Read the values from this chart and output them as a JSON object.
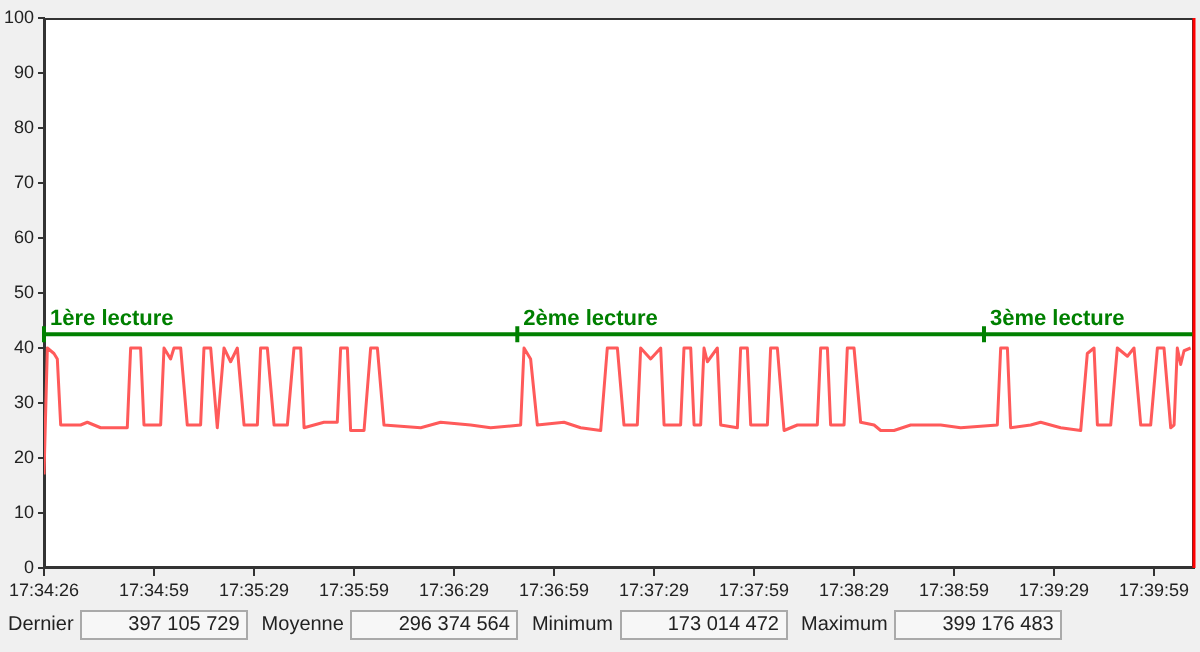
{
  "chart_data": {
    "type": "line",
    "xlim": [
      17.57389,
      17.66972
    ],
    "ylim": [
      0,
      100
    ],
    "yticks": [
      0,
      10,
      20,
      30,
      40,
      50,
      60,
      70,
      80,
      90,
      100
    ],
    "xticks": [
      {
        "value": 17.57389,
        "label": "17:34:26"
      },
      {
        "value": 17.58306,
        "label": "17:34:59"
      },
      {
        "value": 17.59139,
        "label": "17:35:29"
      },
      {
        "value": 17.59972,
        "label": "17:35:59"
      },
      {
        "value": 17.60806,
        "label": "17:36:29"
      },
      {
        "value": 17.61639,
        "label": "17:36:59"
      },
      {
        "value": 17.62472,
        "label": "17:37:29"
      },
      {
        "value": 17.63306,
        "label": "17:37:59"
      },
      {
        "value": 17.64139,
        "label": "17:38:29"
      },
      {
        "value": 17.64972,
        "label": "17:38:59"
      },
      {
        "value": 17.65806,
        "label": "17:39:29"
      },
      {
        "value": 17.66639,
        "label": "17:39:59"
      }
    ],
    "grid": false,
    "legend": false,
    "marker": "none",
    "line_style": "solid",
    "x": [
      17.57389,
      17.57417,
      17.57472,
      17.575,
      17.57528,
      17.57694,
      17.5775,
      17.57861,
      17.58083,
      17.58111,
      17.58194,
      17.58222,
      17.58361,
      17.58389,
      17.58444,
      17.58472,
      17.58528,
      17.58583,
      17.58694,
      17.58722,
      17.58778,
      17.58833,
      17.58889,
      17.58944,
      17.59,
      17.59056,
      17.59167,
      17.59194,
      17.5925,
      17.59306,
      17.59417,
      17.59472,
      17.59528,
      17.59556,
      17.59722,
      17.59833,
      17.59861,
      17.59917,
      17.59944,
      17.60056,
      17.60111,
      17.60167,
      17.60222,
      17.60528,
      17.60694,
      17.60944,
      17.61111,
      17.61361,
      17.61389,
      17.61444,
      17.615,
      17.61722,
      17.61861,
      17.62028,
      17.62083,
      17.62167,
      17.62222,
      17.62333,
      17.62361,
      17.62444,
      17.62528,
      17.62556,
      17.62694,
      17.62722,
      17.62778,
      17.62806,
      17.62861,
      17.62889,
      17.62917,
      17.63,
      17.63028,
      17.63167,
      17.63194,
      17.6325,
      17.63278,
      17.63417,
      17.63444,
      17.635,
      17.63556,
      17.63667,
      17.63833,
      17.63861,
      17.63917,
      17.63944,
      17.64056,
      17.64083,
      17.64139,
      17.64194,
      17.64306,
      17.64361,
      17.64472,
      17.64611,
      17.64861,
      17.65028,
      17.65333,
      17.65361,
      17.65417,
      17.65444,
      17.65611,
      17.65694,
      17.65861,
      17.66028,
      17.66083,
      17.66139,
      17.66167,
      17.66278,
      17.66333,
      17.66417,
      17.66472,
      17.66528,
      17.66611,
      17.66667,
      17.66722,
      17.66778,
      17.66806,
      17.66833,
      17.66861,
      17.66889,
      17.66944
    ],
    "series": [
      {
        "color": "#ff5a5a",
        "values": [
          17,
          40,
          39,
          38,
          26,
          26,
          26.5,
          25.5,
          25.5,
          40,
          40,
          26,
          26,
          40,
          38,
          40,
          40,
          26,
          26,
          40,
          40,
          25.5,
          40,
          37.5,
          40,
          26,
          26,
          40,
          40,
          26,
          26,
          40,
          40,
          25.5,
          26.5,
          26.5,
          40,
          40,
          25,
          25,
          40,
          40,
          26,
          25.5,
          26.5,
          26,
          25.5,
          26,
          40,
          38,
          26,
          26.5,
          25.5,
          25,
          40,
          40,
          26,
          26,
          40,
          38,
          40,
          26,
          26,
          40,
          40,
          26,
          26,
          40,
          37.5,
          40,
          26,
          25.5,
          40,
          40,
          26,
          26,
          40,
          40,
          25,
          26,
          26,
          40,
          40,
          26,
          26,
          40,
          40,
          26.5,
          26,
          25,
          25,
          26,
          26,
          25.5,
          26,
          40,
          40,
          25.5,
          26,
          26.5,
          25.5,
          25,
          39,
          40,
          26,
          26,
          40,
          38.5,
          40,
          26,
          26,
          40,
          40,
          25.5,
          26,
          40,
          37,
          39.5,
          40
        ]
      }
    ],
    "ref_lines": [
      {
        "axis": "y",
        "value": 42.5,
        "color": "#008000"
      },
      {
        "axis": "x",
        "value": 17.66972,
        "color": "#ff0000"
      }
    ],
    "annotations": [
      {
        "text": "1ère lecture",
        "x": 17.57389,
        "y": 42.5
      },
      {
        "text": "2ème lecture",
        "x": 17.61333,
        "y": 42.5
      },
      {
        "text": "3ème lecture",
        "x": 17.65222,
        "y": 42.5
      },
      "Dernier",
      "397 105 729",
      "Moyenne",
      "296 374 564",
      "Minimum",
      "173 014 472",
      "Maximum",
      "399 176 483"
    ]
  }
}
